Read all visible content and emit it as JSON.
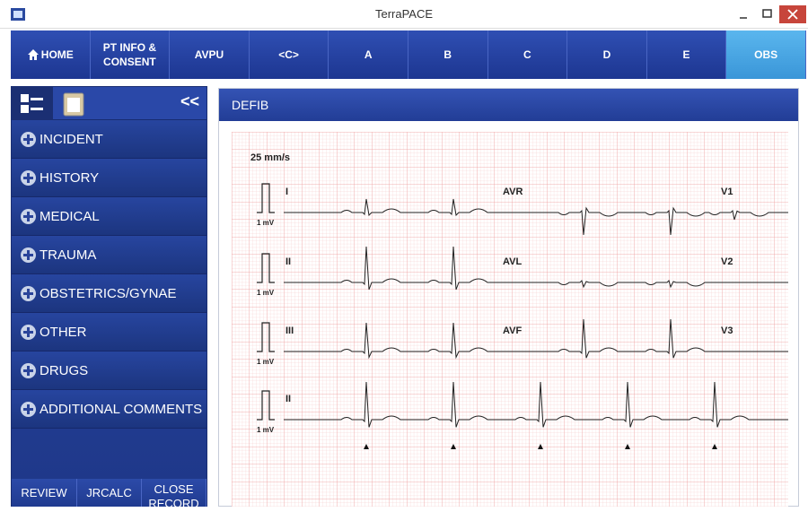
{
  "window": {
    "title": "TerraPACE"
  },
  "nav": [
    "HOME",
    "PT INFO & CONSENT",
    "AVPU",
    "<C>",
    "A",
    "B",
    "C",
    "D",
    "E",
    "OBS"
  ],
  "sidebar": {
    "collapse": "<<",
    "items": [
      "INCIDENT",
      "HISTORY",
      "MEDICAL",
      "TRAUMA",
      "OBSTETRICS/GYNAE",
      "OTHER",
      "DRUGS",
      "ADDITIONAL COMMENTS"
    ],
    "footer": [
      "REVIEW",
      "JRCALC",
      "CLOSE RECORD"
    ]
  },
  "panel": {
    "title": "DEFIB",
    "ecg": {
      "speed": "25 mm/s",
      "calibration": "1 mV",
      "leads": [
        [
          "I",
          "AVR",
          "V1"
        ],
        [
          "II",
          "AVL",
          "V2"
        ],
        [
          "III",
          "AVF",
          "V3"
        ],
        [
          "II"
        ]
      ]
    }
  }
}
